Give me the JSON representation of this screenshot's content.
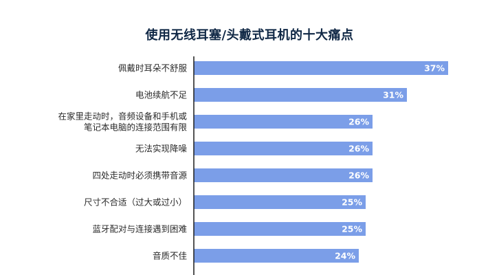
{
  "chart_data": {
    "type": "bar",
    "orientation": "horizontal",
    "title": "使用无线耳塞/头戴式耳机的十大痛点",
    "categories": [
      [
        "佩戴时耳朵不舒服"
      ],
      [
        "电池续航不足"
      ],
      [
        "在家里走动时，音频设备和手机或",
        "笔记本电脑的连接范围有限"
      ],
      [
        "无法实现降噪"
      ],
      [
        "四处走动时必须携带音源"
      ],
      [
        "尺寸不合适（过大或过小）"
      ],
      [
        "蓝牙配对与连接遇到困难"
      ],
      [
        "音质不佳"
      ]
    ],
    "values": [
      37,
      31,
      26,
      26,
      26,
      25,
      25,
      24
    ],
    "value_labels": [
      "37%",
      "31%",
      "26%",
      "26%",
      "26%",
      "25%",
      "25%",
      "24%"
    ],
    "xlim": [
      0,
      45
    ],
    "grid": false,
    "legend": "none",
    "bar_color": "#7b9ee8",
    "axis_color": "#1a1a1a",
    "title_color": "#0f2745"
  }
}
